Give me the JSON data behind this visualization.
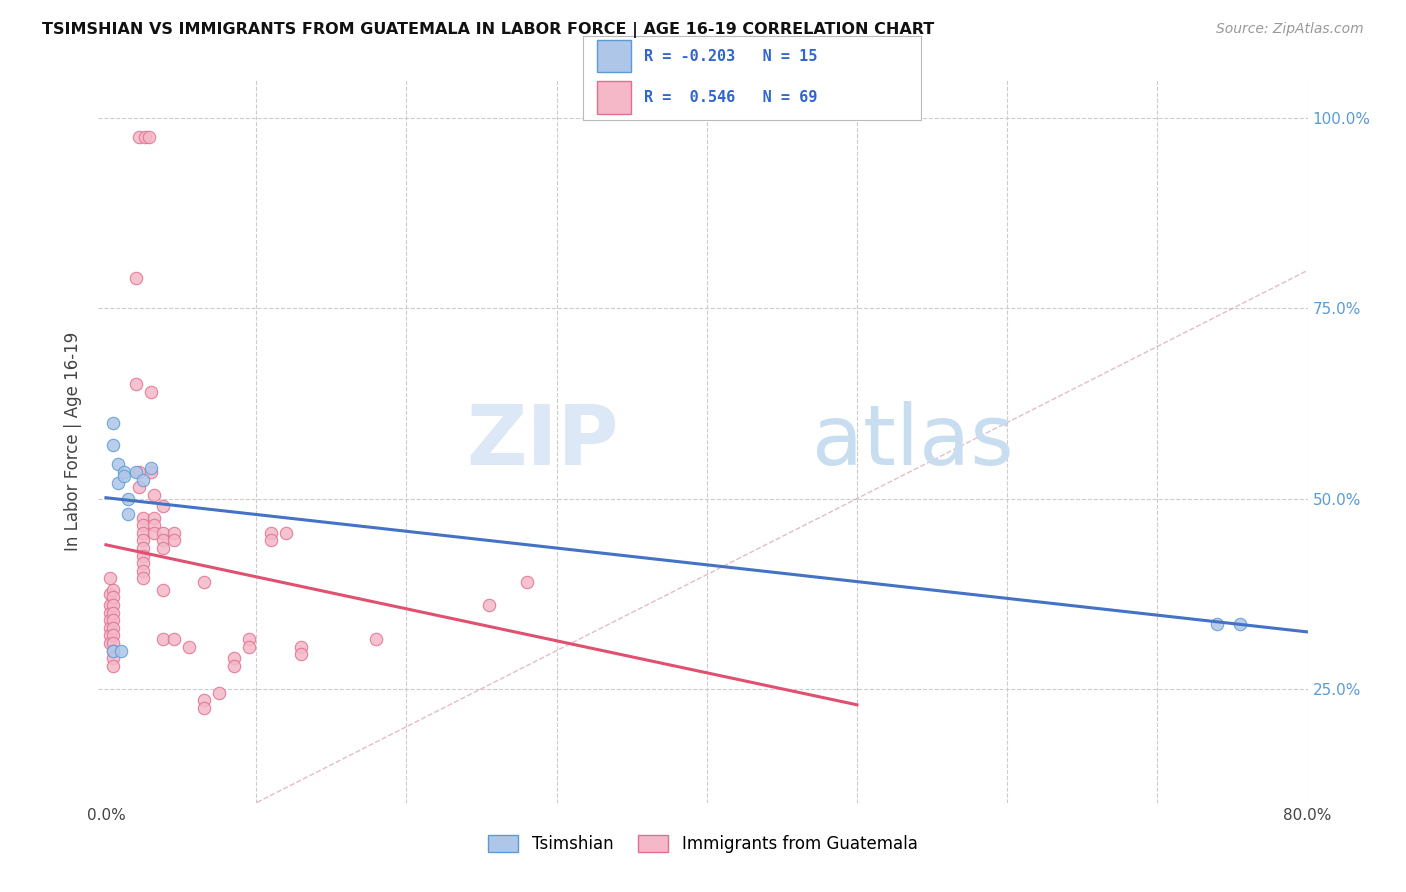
{
  "title": "TSIMSHIAN VS IMMIGRANTS FROM GUATEMALA IN LABOR FORCE | AGE 16-19 CORRELATION CHART",
  "source": "Source: ZipAtlas.com",
  "ylabel": "In Labor Force | Age 16-19",
  "background_color": "#ffffff",
  "tsimshian_color": "#aec6e8",
  "tsimshian_edge_color": "#5b9bd5",
  "guatemala_color": "#f4b8c8",
  "guatemala_edge_color": "#e07090",
  "tsimshian_line_color": "#4472c4",
  "guatemala_line_color": "#e05070",
  "diagonal_color": "#cccccc",
  "tsimshian_points": [
    [
      0.005,
      0.6
    ],
    [
      0.005,
      0.57
    ],
    [
      0.008,
      0.545
    ],
    [
      0.008,
      0.52
    ],
    [
      0.012,
      0.535
    ],
    [
      0.012,
      0.53
    ],
    [
      0.015,
      0.5
    ],
    [
      0.015,
      0.48
    ],
    [
      0.02,
      0.535
    ],
    [
      0.025,
      0.525
    ],
    [
      0.03,
      0.54
    ],
    [
      0.005,
      0.3
    ],
    [
      0.01,
      0.3
    ],
    [
      0.74,
      0.335
    ],
    [
      0.755,
      0.335
    ]
  ],
  "guatemala_points": [
    [
      0.022,
      0.975
    ],
    [
      0.026,
      0.975
    ],
    [
      0.029,
      0.975
    ],
    [
      0.003,
      0.395
    ],
    [
      0.003,
      0.375
    ],
    [
      0.003,
      0.36
    ],
    [
      0.003,
      0.35
    ],
    [
      0.003,
      0.34
    ],
    [
      0.003,
      0.33
    ],
    [
      0.003,
      0.32
    ],
    [
      0.003,
      0.31
    ],
    [
      0.005,
      0.38
    ],
    [
      0.005,
      0.37
    ],
    [
      0.005,
      0.36
    ],
    [
      0.005,
      0.35
    ],
    [
      0.005,
      0.34
    ],
    [
      0.005,
      0.33
    ],
    [
      0.005,
      0.32
    ],
    [
      0.005,
      0.31
    ],
    [
      0.005,
      0.3
    ],
    [
      0.005,
      0.29
    ],
    [
      0.005,
      0.28
    ],
    [
      0.02,
      0.79
    ],
    [
      0.02,
      0.65
    ],
    [
      0.022,
      0.535
    ],
    [
      0.022,
      0.515
    ],
    [
      0.025,
      0.475
    ],
    [
      0.025,
      0.465
    ],
    [
      0.025,
      0.455
    ],
    [
      0.025,
      0.445
    ],
    [
      0.025,
      0.435
    ],
    [
      0.025,
      0.425
    ],
    [
      0.025,
      0.415
    ],
    [
      0.025,
      0.405
    ],
    [
      0.025,
      0.395
    ],
    [
      0.03,
      0.64
    ],
    [
      0.03,
      0.535
    ],
    [
      0.032,
      0.505
    ],
    [
      0.032,
      0.475
    ],
    [
      0.032,
      0.465
    ],
    [
      0.032,
      0.455
    ],
    [
      0.038,
      0.49
    ],
    [
      0.038,
      0.455
    ],
    [
      0.038,
      0.445
    ],
    [
      0.038,
      0.435
    ],
    [
      0.038,
      0.38
    ],
    [
      0.038,
      0.315
    ],
    [
      0.045,
      0.455
    ],
    [
      0.045,
      0.445
    ],
    [
      0.045,
      0.315
    ],
    [
      0.055,
      0.305
    ],
    [
      0.065,
      0.39
    ],
    [
      0.065,
      0.235
    ],
    [
      0.065,
      0.225
    ],
    [
      0.075,
      0.245
    ],
    [
      0.085,
      0.29
    ],
    [
      0.085,
      0.28
    ],
    [
      0.095,
      0.315
    ],
    [
      0.095,
      0.305
    ],
    [
      0.11,
      0.455
    ],
    [
      0.11,
      0.445
    ],
    [
      0.12,
      0.455
    ],
    [
      0.13,
      0.305
    ],
    [
      0.13,
      0.295
    ],
    [
      0.18,
      0.315
    ],
    [
      0.255,
      0.36
    ],
    [
      0.28,
      0.39
    ]
  ],
  "xlim": [
    -0.005,
    0.8
  ],
  "ylim": [
    0.1,
    1.05
  ],
  "xticks": [
    0.0,
    0.1,
    0.2,
    0.3,
    0.4,
    0.5,
    0.6,
    0.7,
    0.8
  ],
  "yticks": [
    0.25,
    0.5,
    0.75,
    1.0
  ],
  "ytick_right_labels": [
    "25.0%",
    "50.0%",
    "75.0%",
    "100.0%"
  ],
  "right_tick_color": "#5b9bd5",
  "watermark_zip_color": "#dce8f5",
  "watermark_atlas_color": "#c8ddf0"
}
